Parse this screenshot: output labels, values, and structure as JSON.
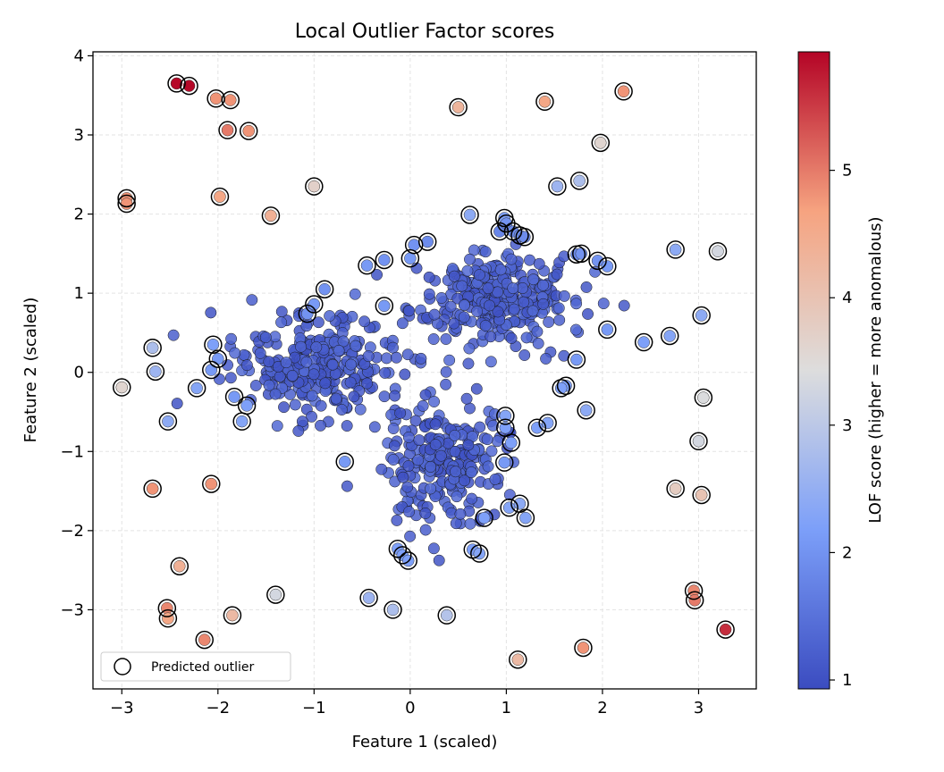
{
  "chart_data": {
    "type": "scatter",
    "title": "Local Outlier Factor scores",
    "xlabel": "Feature 1 (scaled)",
    "ylabel": "Feature 2 (scaled)",
    "xlim": [
      -3.3,
      3.6
    ],
    "ylim": [
      -4.0,
      4.05
    ],
    "xticks": [
      -3,
      -2,
      -1,
      0,
      1,
      2,
      3
    ],
    "yticks": [
      -3,
      -2,
      -1,
      0,
      1,
      2,
      3,
      4
    ],
    "xtick_labels": [
      "−3",
      "−2",
      "−1",
      "0",
      "1",
      "2",
      "3"
    ],
    "ytick_labels": [
      "−3",
      "−2",
      "−1",
      "0",
      "1",
      "2",
      "3",
      "4"
    ],
    "grid": true,
    "legend": {
      "label": "Predicted outlier",
      "position": "lower-left"
    },
    "colorbar": {
      "label": "LOF score (higher = more anomalous)",
      "colormap": "coolwarm",
      "range": [
        0.93,
        5.93
      ],
      "ticks": [
        1,
        2,
        3,
        4,
        5
      ],
      "tick_labels": [
        "1",
        "2",
        "3",
        "4",
        "5"
      ]
    },
    "clusters": [
      {
        "center": [
          -1.0,
          0.1
        ],
        "spread": [
          0.42,
          0.32
        ],
        "count": 280,
        "score_range": [
          1.0,
          1.4
        ]
      },
      {
        "center": [
          0.85,
          0.95
        ],
        "spread": [
          0.42,
          0.28
        ],
        "count": 300,
        "score_range": [
          1.0,
          1.4
        ]
      },
      {
        "center": [
          0.35,
          -1.15
        ],
        "spread": [
          0.32,
          0.38
        ],
        "count": 240,
        "score_range": [
          1.0,
          1.4
        ]
      }
    ],
    "outliers": [
      {
        "x": -2.43,
        "y": 3.65,
        "s": 5.9
      },
      {
        "x": -2.3,
        "y": 3.62,
        "s": 5.9
      },
      {
        "x": -2.02,
        "y": 3.46,
        "s": 4.8
      },
      {
        "x": -1.87,
        "y": 3.44,
        "s": 4.8
      },
      {
        "x": -1.9,
        "y": 3.06,
        "s": 5.0
      },
      {
        "x": -1.68,
        "y": 3.05,
        "s": 4.8
      },
      {
        "x": 0.5,
        "y": 3.35,
        "s": 4.3
      },
      {
        "x": 1.4,
        "y": 3.42,
        "s": 4.6
      },
      {
        "x": 2.22,
        "y": 3.55,
        "s": 4.8
      },
      {
        "x": 1.98,
        "y": 2.9,
        "s": 3.6
      },
      {
        "x": -1.0,
        "y": 2.35,
        "s": 3.7
      },
      {
        "x": -2.95,
        "y": 2.2,
        "s": 4.8
      },
      {
        "x": -2.95,
        "y": 2.13,
        "s": 4.8
      },
      {
        "x": -1.98,
        "y": 2.22,
        "s": 4.6
      },
      {
        "x": -1.45,
        "y": 1.98,
        "s": 4.4
      },
      {
        "x": 0.62,
        "y": 1.99,
        "s": 2.4
      },
      {
        "x": 1.53,
        "y": 2.35,
        "s": 2.6
      },
      {
        "x": 1.76,
        "y": 2.42,
        "s": 2.8
      },
      {
        "x": 0.98,
        "y": 1.95,
        "s": 2.2
      },
      {
        "x": 0.93,
        "y": 1.78,
        "s": 1.8
      },
      {
        "x": 1.0,
        "y": 1.88,
        "s": 2.0
      },
      {
        "x": 1.07,
        "y": 1.78,
        "s": 1.9
      },
      {
        "x": 1.14,
        "y": 1.73,
        "s": 2.0
      },
      {
        "x": 1.19,
        "y": 1.71,
        "s": 1.9
      },
      {
        "x": 0.04,
        "y": 1.61,
        "s": 2.0
      },
      {
        "x": 0.18,
        "y": 1.65,
        "s": 1.9
      },
      {
        "x": -0.45,
        "y": 1.35,
        "s": 2.1
      },
      {
        "x": -0.27,
        "y": 1.42,
        "s": 2.0
      },
      {
        "x": 0.0,
        "y": 1.44,
        "s": 2.1
      },
      {
        "x": 1.73,
        "y": 1.49,
        "s": 1.9
      },
      {
        "x": 1.78,
        "y": 1.5,
        "s": 2.0
      },
      {
        "x": 1.95,
        "y": 1.41,
        "s": 2.0
      },
      {
        "x": 2.05,
        "y": 1.34,
        "s": 2.1
      },
      {
        "x": 2.76,
        "y": 1.55,
        "s": 2.4
      },
      {
        "x": 3.2,
        "y": 1.53,
        "s": 3.3
      },
      {
        "x": -0.89,
        "y": 1.05,
        "s": 2.0
      },
      {
        "x": -1.0,
        "y": 0.86,
        "s": 2.1
      },
      {
        "x": -1.07,
        "y": 0.74,
        "s": 2.0
      },
      {
        "x": -0.27,
        "y": 0.84,
        "s": 2.1
      },
      {
        "x": -2.68,
        "y": 0.31,
        "s": 2.8
      },
      {
        "x": -2.05,
        "y": 0.35,
        "s": 2.2
      },
      {
        "x": -2.0,
        "y": 0.17,
        "s": 2.1
      },
      {
        "x": -2.07,
        "y": 0.03,
        "s": 2.1
      },
      {
        "x": -2.65,
        "y": 0.01,
        "s": 2.6
      },
      {
        "x": -2.22,
        "y": -0.2,
        "s": 2.3
      },
      {
        "x": -3.0,
        "y": -0.19,
        "s": 3.6
      },
      {
        "x": -1.83,
        "y": -0.31,
        "s": 2.1
      },
      {
        "x": -1.7,
        "y": -0.42,
        "s": 2.2
      },
      {
        "x": -1.75,
        "y": -0.62,
        "s": 2.3
      },
      {
        "x": -2.52,
        "y": -0.62,
        "s": 2.4
      },
      {
        "x": 2.05,
        "y": 0.54,
        "s": 2.1
      },
      {
        "x": 2.43,
        "y": 0.38,
        "s": 2.2
      },
      {
        "x": 2.7,
        "y": 0.46,
        "s": 2.3
      },
      {
        "x": 3.03,
        "y": 0.72,
        "s": 2.4
      },
      {
        "x": 1.73,
        "y": 0.16,
        "s": 2.1
      },
      {
        "x": 1.62,
        "y": -0.17,
        "s": 2.2
      },
      {
        "x": 1.57,
        "y": -0.2,
        "s": 2.2
      },
      {
        "x": 1.83,
        "y": -0.48,
        "s": 2.4
      },
      {
        "x": 3.05,
        "y": -0.32,
        "s": 3.4
      },
      {
        "x": 0.99,
        "y": -0.55,
        "s": 2.3
      },
      {
        "x": 0.99,
        "y": -0.7,
        "s": 2.2
      },
      {
        "x": 1.05,
        "y": -0.89,
        "s": 2.2
      },
      {
        "x": 1.43,
        "y": -0.64,
        "s": 2.3
      },
      {
        "x": 1.32,
        "y": -0.7,
        "s": 2.2
      },
      {
        "x": 0.98,
        "y": -1.14,
        "s": 2.1
      },
      {
        "x": -0.68,
        "y": -1.13,
        "s": 2.1
      },
      {
        "x": 3.0,
        "y": -0.87,
        "s": 3.3
      },
      {
        "x": 2.76,
        "y": -1.47,
        "s": 3.8
      },
      {
        "x": 3.03,
        "y": -1.55,
        "s": 4.0
      },
      {
        "x": 1.14,
        "y": -1.66,
        "s": 2.4
      },
      {
        "x": 1.03,
        "y": -1.71,
        "s": 2.3
      },
      {
        "x": 1.2,
        "y": -1.84,
        "s": 2.3
      },
      {
        "x": 0.77,
        "y": -1.84,
        "s": 2.2
      },
      {
        "x": 0.65,
        "y": -2.24,
        "s": 2.2
      },
      {
        "x": 0.72,
        "y": -2.29,
        "s": 2.3
      },
      {
        "x": -0.13,
        "y": -2.23,
        "s": 2.2
      },
      {
        "x": -0.08,
        "y": -2.31,
        "s": 2.2
      },
      {
        "x": -0.02,
        "y": -2.38,
        "s": 2.2
      },
      {
        "x": -2.68,
        "y": -1.47,
        "s": 4.8
      },
      {
        "x": -2.07,
        "y": -1.41,
        "s": 4.8
      },
      {
        "x": -2.4,
        "y": -2.45,
        "s": 4.4
      },
      {
        "x": -1.4,
        "y": -2.81,
        "s": 3.3
      },
      {
        "x": -0.43,
        "y": -2.85,
        "s": 2.6
      },
      {
        "x": -0.18,
        "y": -3.0,
        "s": 2.8
      },
      {
        "x": 0.38,
        "y": -3.07,
        "s": 2.9
      },
      {
        "x": -2.53,
        "y": -2.98,
        "s": 4.9
      },
      {
        "x": -2.52,
        "y": -3.11,
        "s": 4.6
      },
      {
        "x": -1.85,
        "y": -3.07,
        "s": 4.2
      },
      {
        "x": -2.14,
        "y": -3.38,
        "s": 4.9
      },
      {
        "x": 2.95,
        "y": -2.76,
        "s": 4.9
      },
      {
        "x": 2.96,
        "y": -2.88,
        "s": 5.0
      },
      {
        "x": 3.28,
        "y": -3.25,
        "s": 5.6
      },
      {
        "x": 1.8,
        "y": -3.48,
        "s": 4.8
      },
      {
        "x": 1.12,
        "y": -3.63,
        "s": 4.2
      }
    ]
  }
}
